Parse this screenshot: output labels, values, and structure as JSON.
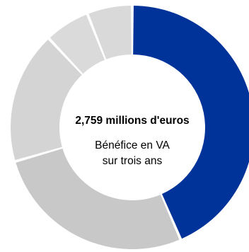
{
  "chart_data": {
    "type": "pie",
    "variant": "donut",
    "slices": [
      {
        "value": 43.5,
        "color": "#003399"
      },
      {
        "value": 27.0,
        "color": "#c8c8c8"
      },
      {
        "value": 17.5,
        "color": "#d4d4d4"
      },
      {
        "value": 6.0,
        "color": "#dadada"
      },
      {
        "value": 6.0,
        "color": "#d9d9d9"
      }
    ],
    "center_value": "2,759 millions d'euros",
    "center_caption_line1": "Bénéfice en VA",
    "center_caption_line2": "sur trois ans",
    "legend": "none"
  }
}
